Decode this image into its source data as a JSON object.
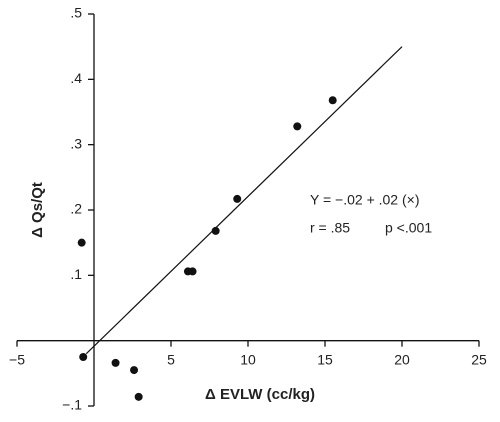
{
  "chart_data": {
    "type": "scatter",
    "x_label": "Δ EVLW (cc/kg)",
    "y_label": "Δ Qs/Qt",
    "annotations": [
      "Y = −.02 + .02 (×)",
      "r = .85",
      "p <.001"
    ],
    "xlim": [
      -5,
      25
    ],
    "ylim": [
      -0.1,
      0.5
    ],
    "xticks": [
      {
        "value": -5,
        "label": "−5"
      },
      5,
      10,
      15,
      20,
      25
    ],
    "yticks": [
      {
        "value": -0.1,
        "label": "−.1"
      },
      {
        "value": 0.1,
        "label": ".1"
      },
      {
        "value": 0.2,
        "label": ".2"
      },
      {
        "value": 0.3,
        "label": ".3"
      },
      {
        "value": 0.4,
        "label": ".4"
      },
      {
        "value": 0.5,
        "label": ".5"
      }
    ],
    "color": "#111111",
    "x": [
      -0.8,
      -0.7,
      1.4,
      2.6,
      2.9,
      6.1,
      6.4,
      7.9,
      9.3,
      13.2,
      15.5
    ],
    "values": [
      0.15,
      -0.025,
      -0.034,
      -0.045,
      -0.086,
      0.106,
      0.106,
      0.168,
      0.217,
      0.328,
      0.368
    ],
    "fit_line": {
      "x": [
        -0.5,
        20
      ],
      "y": [
        -0.02,
        0.45
      ]
    }
  }
}
